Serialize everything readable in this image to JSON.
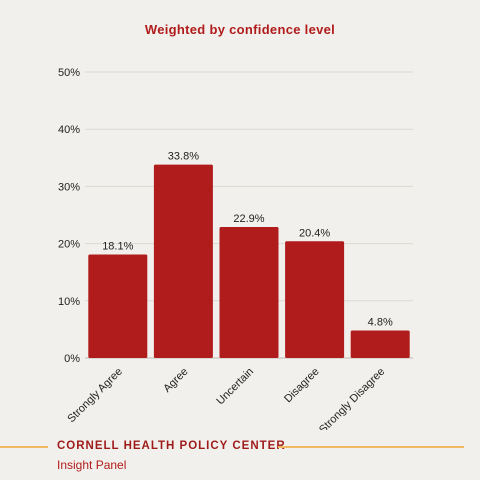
{
  "chart_data": {
    "type": "bar",
    "title": "Weighted by confidence level",
    "categories": [
      "Strongly Agree",
      "Agree",
      "Uncertain",
      "Disagree",
      "Strongly Disagree"
    ],
    "values": [
      18.1,
      33.8,
      22.9,
      20.4,
      4.8
    ],
    "value_labels": [
      "18.1%",
      "33.8%",
      "22.9%",
      "20.4%",
      "4.8%"
    ],
    "y_ticks": [
      "0%",
      "10%",
      "20%",
      "30%",
      "40%",
      "50%"
    ],
    "ylim": [
      0,
      50
    ],
    "grid": true,
    "bar_color": "#b01c1c",
    "xlabel": "",
    "ylabel": ""
  },
  "footer": {
    "organization": "CORNELL HEALTH POLICY CENTER",
    "panel": "Insight Panel",
    "accent_color": "#f0b860"
  }
}
